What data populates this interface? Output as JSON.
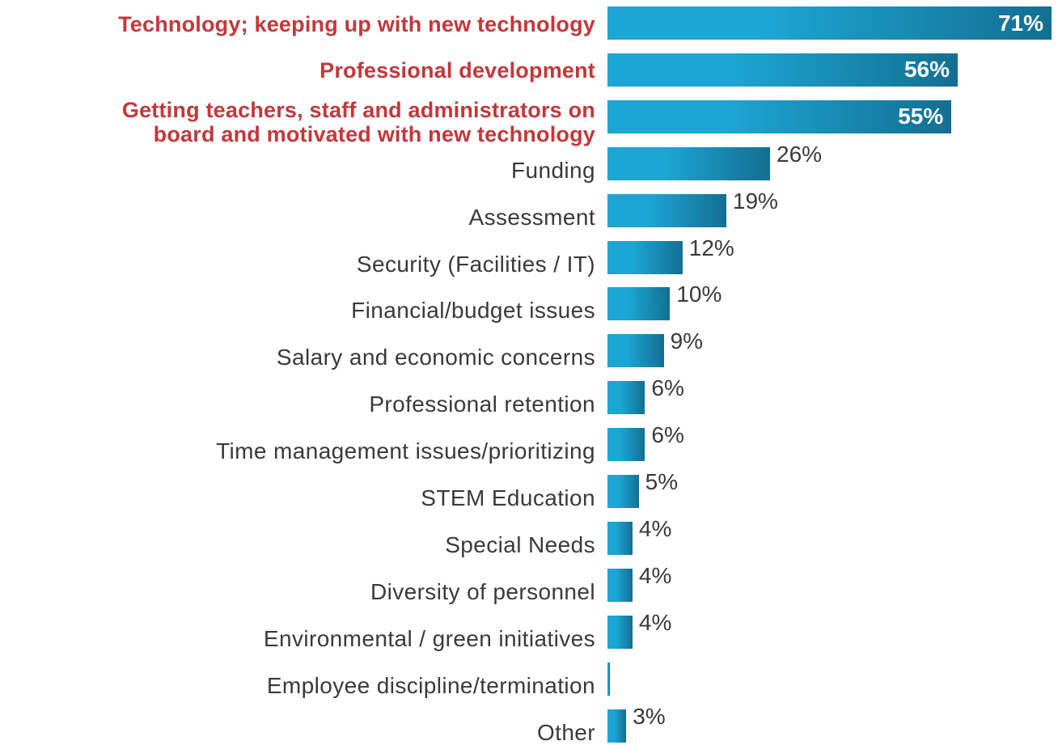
{
  "chart_data": {
    "type": "bar",
    "orientation": "horizontal",
    "categories": [
      "Technology; keeping up with new technology",
      "Professional development",
      "Getting teachers, staff and administrators on\nboard and motivated with new technology",
      "Funding",
      "Assessment",
      "Security (Facilities / IT)",
      "Financial/budget issues",
      "Salary and economic concerns",
      "Professional retention",
      "Time management issues/prioritizing",
      "STEM Education",
      "Special Needs",
      "Diversity of personnel",
      "Environmental / green initiatives",
      "Employee discipline/termination",
      "Other"
    ],
    "values": [
      71,
      56,
      55,
      26,
      19,
      12,
      10,
      9,
      6,
      6,
      5,
      4,
      4,
      4,
      0.3,
      3
    ],
    "value_labels": [
      "71%",
      "56%",
      "55%",
      "26%",
      "19%",
      "12%",
      "10%",
      "9%",
      "6%",
      "6%",
      "5%",
      "4%",
      "4%",
      "4%",
      "",
      "3%"
    ],
    "highlighted": [
      true,
      true,
      true,
      false,
      false,
      false,
      false,
      false,
      false,
      false,
      false,
      false,
      false,
      false,
      false,
      false
    ],
    "xlim": [
      0,
      71
    ],
    "colors": {
      "bar_light": "#1ca6d4",
      "bar_dark": "#136f92",
      "highlight_text": "#c4373a",
      "label_text": "#3a3a3a"
    }
  }
}
